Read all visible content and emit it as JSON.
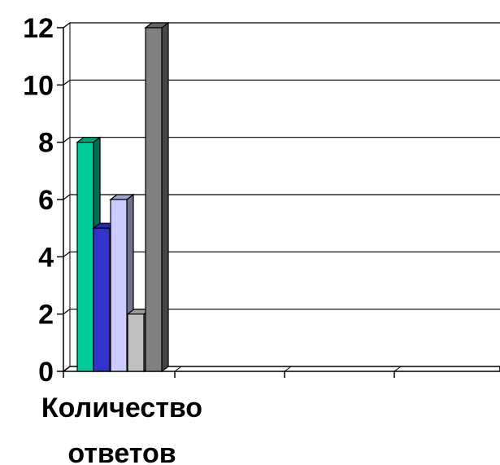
{
  "chart_data": {
    "type": "bar",
    "title": "",
    "xlabel_lines": [
      "Количество",
      "ответов"
    ],
    "ylabel": "",
    "categories": [
      "",
      "",
      ""
    ],
    "series": [
      {
        "values": [
          8,
          0,
          0
        ],
        "color": "#00cc99"
      },
      {
        "values": [
          5,
          0,
          0
        ],
        "color": "#3333cc"
      },
      {
        "values": [
          6,
          0,
          0
        ],
        "color": "#ccccff"
      },
      {
        "values": [
          2,
          0,
          0
        ],
        "color": "#c0c0c0"
      },
      {
        "values": [
          12,
          0,
          0
        ],
        "color": "#808080"
      }
    ],
    "ylim": [
      0,
      12
    ],
    "yticks": [
      "0",
      "2",
      "4",
      "6",
      "8",
      "10",
      "12"
    ],
    "grid": true,
    "legend": "none"
  }
}
